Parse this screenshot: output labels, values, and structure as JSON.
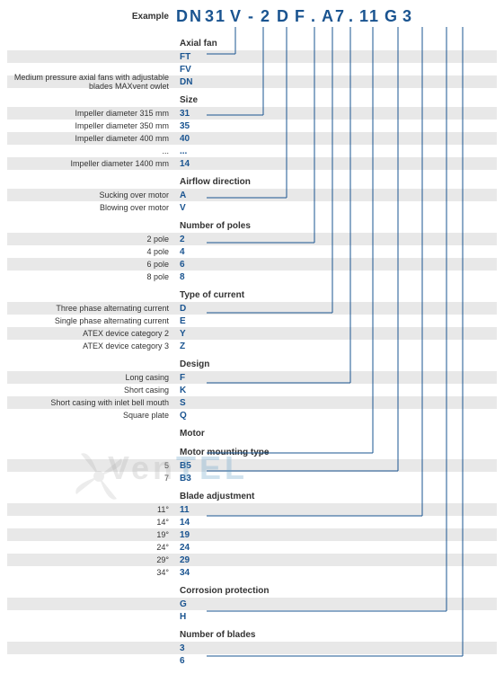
{
  "example": {
    "label": "Example",
    "parts": [
      "DN",
      "31",
      "V",
      "-",
      "2",
      "D",
      "F",
      ".",
      "A7",
      ".",
      "11",
      "G",
      "3"
    ]
  },
  "sections": [
    {
      "header": "Axial fan",
      "rows": [
        {
          "label": "",
          "code": "FT",
          "alt": true
        },
        {
          "label": "",
          "code": "FV",
          "alt": false
        },
        {
          "label": "Medium pressure axial fans with adjustable blades MAXvent owlet",
          "code": "DN",
          "alt": true
        }
      ]
    },
    {
      "header": "Size",
      "rows": [
        {
          "label": "Impeller diameter 315 mm",
          "code": "31",
          "alt": true
        },
        {
          "label": "Impeller diameter 350 mm",
          "code": "35",
          "alt": false
        },
        {
          "label": "Impeller diameter 400 mm",
          "code": "40",
          "alt": true
        },
        {
          "label": "...",
          "code": "...",
          "alt": false
        },
        {
          "label": "Impeller diameter 1400 mm",
          "code": "14",
          "alt": true
        }
      ]
    },
    {
      "header": "Airflow direction",
      "rows": [
        {
          "label": "Sucking over motor",
          "code": "A",
          "alt": true
        },
        {
          "label": "Blowing over motor",
          "code": "V",
          "alt": false
        }
      ]
    },
    {
      "header": "Number of poles",
      "rows": [
        {
          "label": "2 pole",
          "code": "2",
          "alt": true
        },
        {
          "label": "4 pole",
          "code": "4",
          "alt": false
        },
        {
          "label": "6 pole",
          "code": "6",
          "alt": true
        },
        {
          "label": "8 pole",
          "code": "8",
          "alt": false
        }
      ]
    },
    {
      "header": "Type of current",
      "rows": [
        {
          "label": "Three phase alternating current",
          "code": "D",
          "alt": true
        },
        {
          "label": "Single phase alternating current",
          "code": "E",
          "alt": false
        },
        {
          "label": "ATEX device category 2",
          "code": "Y",
          "alt": true
        },
        {
          "label": "ATEX device category 3",
          "code": "Z",
          "alt": false
        }
      ]
    },
    {
      "header": "Design",
      "rows": [
        {
          "label": "Long casing",
          "code": "F",
          "alt": true
        },
        {
          "label": "Short casing",
          "code": "K",
          "alt": false
        },
        {
          "label": "Short casing with inlet bell mouth",
          "code": "S",
          "alt": true
        },
        {
          "label": "Square plate",
          "code": "Q",
          "alt": false
        }
      ]
    },
    {
      "header": "Motor",
      "rows": []
    },
    {
      "header": "Motor mounting type",
      "rows": [
        {
          "label": "5",
          "code": "B5",
          "alt": true
        },
        {
          "label": "7",
          "code": "B3",
          "alt": false
        }
      ]
    },
    {
      "header": "Blade adjustment",
      "rows": [
        {
          "label": "11°",
          "code": "11",
          "alt": true
        },
        {
          "label": "14°",
          "code": "14",
          "alt": false
        },
        {
          "label": "19°",
          "code": "19",
          "alt": true
        },
        {
          "label": "24°",
          "code": "24",
          "alt": false
        },
        {
          "label": "29°",
          "code": "29",
          "alt": true
        },
        {
          "label": "34°",
          "code": "34",
          "alt": false
        }
      ]
    },
    {
      "header": "Corrosion protection",
      "rows": [
        {
          "label": "",
          "code": "G",
          "alt": true
        },
        {
          "label": "",
          "code": "H",
          "alt": false
        }
      ]
    },
    {
      "header": "Number of blades",
      "rows": [
        {
          "label": "",
          "code": "3",
          "alt": true
        },
        {
          "label": "",
          "code": "6",
          "alt": false
        }
      ]
    }
  ],
  "lines": {
    "color": "#1a5490",
    "width": 1,
    "connections": [
      {
        "codeX": 262,
        "sectionY": 60
      },
      {
        "codeX": 293,
        "sectionY": 128
      },
      {
        "codeX": 319,
        "sectionY": 220
      },
      {
        "codeX": 350,
        "sectionY": 270
      },
      {
        "codeX": 370,
        "sectionY": 348
      },
      {
        "codeX": 390,
        "sectionY": 426
      },
      {
        "codeX": 415,
        "sectionY": 504
      },
      {
        "codeX": 443,
        "sectionY": 524
      },
      {
        "codeX": 470,
        "sectionY": 574
      },
      {
        "codeX": 497,
        "sectionY": 680
      },
      {
        "codeX": 515,
        "sectionY": 730
      }
    ],
    "topY": 30,
    "leftX": 230
  },
  "watermark": {
    "text1": "Ven",
    "text2": "TEL"
  }
}
